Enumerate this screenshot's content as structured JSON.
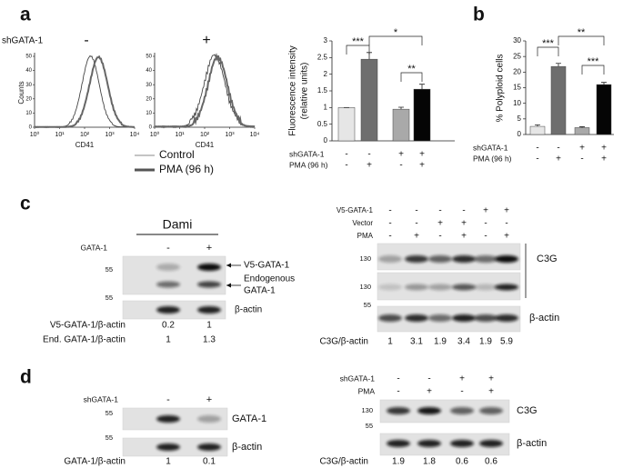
{
  "panel_labels": [
    "a",
    "b",
    "c",
    "d"
  ],
  "flow": {
    "condition_label": "shGATA-1",
    "panels": [
      "-",
      "+"
    ],
    "y_label": "Counts",
    "x_label": "CD41",
    "ylim": [
      0,
      50
    ],
    "yticks": [
      0,
      10,
      20,
      30,
      40,
      50
    ],
    "log_x": true,
    "xlim": [
      1,
      10000
    ],
    "xticks": [
      {
        "value": 1,
        "label": "10⁰"
      },
      {
        "value": 10,
        "label": "10¹"
      },
      {
        "value": 100,
        "label": "10²"
      },
      {
        "value": 1000,
        "label": "10³"
      },
      {
        "value": 10000,
        "label": "10⁴"
      }
    ],
    "legend": [
      "Control",
      "PMA (96 h)"
    ]
  },
  "chart_data": [
    {
      "type": "bar",
      "y_label": [
        "Fluorescence intensity",
        "(relative units)"
      ],
      "ylim": [
        0,
        3
      ],
      "yticks": [
        0,
        0.5,
        1,
        1.5,
        2,
        2.5,
        3
      ],
      "values": [
        1,
        2.45,
        0.95,
        1.55
      ],
      "errors": [
        0,
        0.2,
        0.06,
        0.15
      ],
      "colors": [
        "#e6e6e6",
        "#6e6e6e",
        "#a9a9a9",
        "#050505"
      ],
      "conditions": [
        {
          "name": "shGATA-1",
          "values": [
            "-",
            "-",
            "+",
            "+"
          ]
        },
        {
          "name": "PMA (96 h)",
          "values": [
            "-",
            "+",
            "-",
            "+"
          ]
        }
      ],
      "significance": [
        "***",
        "*",
        "**"
      ]
    },
    {
      "type": "bar",
      "y_label": [
        "% Polyploid cells"
      ],
      "ylim": [
        0,
        30
      ],
      "yticks": [
        0,
        5,
        10,
        15,
        20,
        25,
        30
      ],
      "values": [
        2.6,
        21.8,
        2.2,
        16
      ],
      "errors": [
        0.5,
        1,
        0.3,
        0.7
      ],
      "colors": [
        "#e6e6e6",
        "#6e6e6e",
        "#a9a9a9",
        "#050505"
      ],
      "conditions": [
        {
          "name": "shGATA-1",
          "values": [
            "-",
            "-",
            "+",
            "+"
          ]
        },
        {
          "name": "PMA (96 h)",
          "values": [
            "-",
            "+",
            "-",
            "+"
          ]
        }
      ],
      "significance": [
        "***",
        "**",
        "***"
      ]
    }
  ],
  "panel_c": {
    "left": {
      "title": "Dami",
      "condition": {
        "name": "GATA-1",
        "values": [
          "-",
          "+"
        ]
      },
      "mw": [
        55,
        55
      ],
      "band_label": "V5-GATA-1",
      "endogenous_label": [
        "Endogenous",
        "GATA-1"
      ],
      "loading_label": "β-actin",
      "quantification": [
        {
          "name": "V5-GATA-1/β-actin",
          "values": [
            0.2,
            1
          ]
        },
        {
          "name": "End. GATA-1/β-actin",
          "values": [
            1,
            1.3
          ]
        }
      ]
    },
    "right": {
      "conditions": [
        {
          "name": "V5-GATA-1",
          "values": [
            "-",
            "-",
            "-",
            "-",
            "+",
            "+"
          ]
        },
        {
          "name": "Vector",
          "values": [
            "-",
            "-",
            "+",
            "+",
            "-",
            "-"
          ]
        },
        {
          "name": "PMA",
          "values": [
            "-",
            "+",
            "-",
            "+",
            "-",
            "+"
          ]
        }
      ],
      "mw": [
        130,
        130,
        55
      ],
      "target_label": "C3G",
      "loading_label": "β-actin",
      "quantification": {
        "name": "C3G/β-actin",
        "values": [
          1,
          3.1,
          1.9,
          3.4,
          1.9,
          5.9
        ]
      }
    }
  },
  "panel_d": {
    "left": {
      "condition": {
        "name": "shGATA-1",
        "values": [
          "-",
          "+"
        ]
      },
      "mw": [
        55,
        55
      ],
      "target_label": "GATA-1",
      "loading_label": "β-actin",
      "quantification": {
        "name": "GATA-1/β-actin",
        "values": [
          1,
          0.1
        ]
      }
    },
    "right": {
      "conditions": [
        {
          "name": "shGATA-1",
          "values": [
            "-",
            "-",
            "+",
            "+"
          ]
        },
        {
          "name": "PMA",
          "values": [
            "-",
            "+",
            "-",
            "+"
          ]
        }
      ],
      "mw": [
        130,
        55
      ],
      "target_label": "C3G",
      "loading_label": "β-actin",
      "quantification": {
        "name": "C3G/β-actin",
        "values": [
          1.9,
          1.8,
          0.6,
          0.6
        ]
      }
    }
  }
}
